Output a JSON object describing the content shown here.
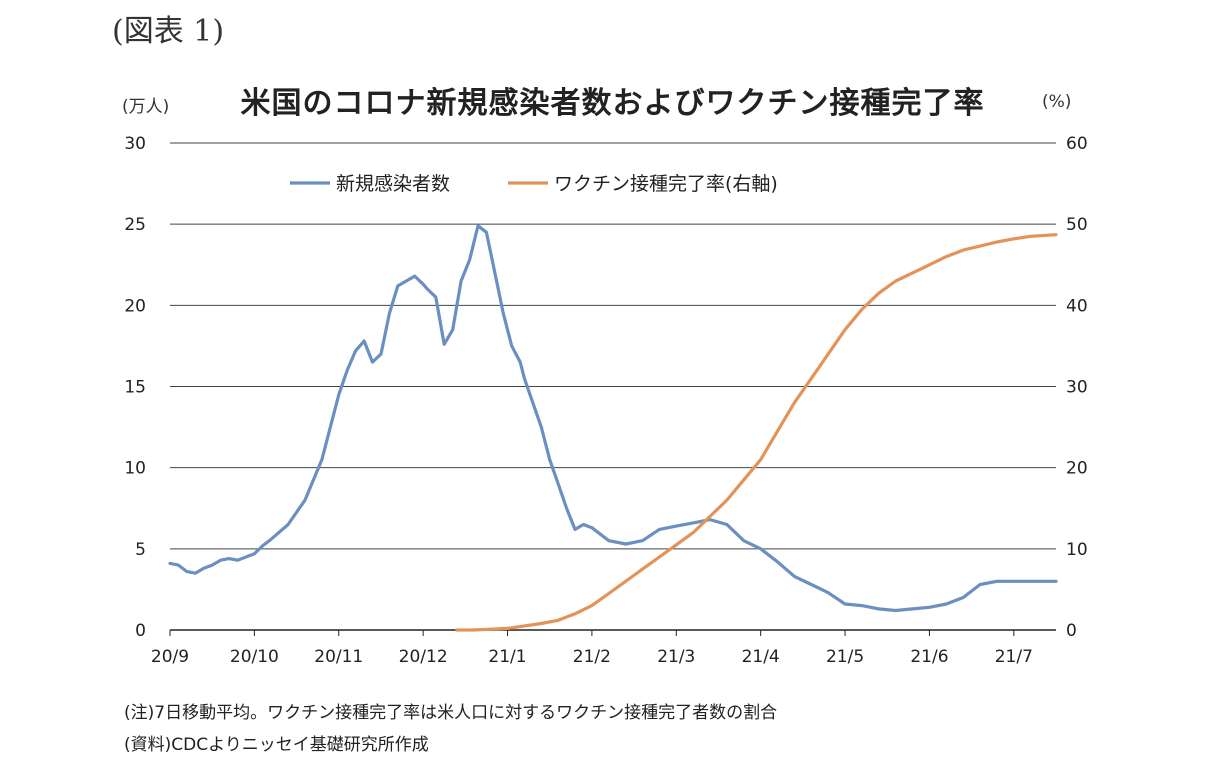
{
  "figure_label": "(図表 1)",
  "notes": [
    "(注)7日移動平均。ワクチン接種完了率は米人口に対するワクチン接種完了者数の割合",
    "(資料)CDCよりニッセイ基礎研究所作成"
  ],
  "colors": {
    "cases": "#6a8fc0",
    "vaccine": "#e39358",
    "grid": "#444444"
  },
  "chart_data": {
    "type": "line",
    "title": "米国のコロナ新規感染者数およびワクチン接種完了率",
    "y_left_unit": "(万人)",
    "y_right_unit": "(%)",
    "y_left_range": [
      0,
      30
    ],
    "y_right_range": [
      0,
      60
    ],
    "y_left_ticks": [
      "0",
      "5",
      "10",
      "15",
      "20",
      "25",
      "30"
    ],
    "y_right_ticks": [
      "0",
      "10",
      "20",
      "30",
      "40",
      "50",
      "60"
    ],
    "x_range": [
      0,
      10.5
    ],
    "x_ticks": [
      "20/9",
      "20/10",
      "20/11",
      "20/12",
      "21/1",
      "21/2",
      "21/3",
      "21/4",
      "21/5",
      "21/6",
      "21/7"
    ],
    "grid": true,
    "legend_position": "top",
    "series": [
      {
        "name": "新規感染者数",
        "axis": "left",
        "x": [
          0,
          0.1,
          0.2,
          0.3,
          0.4,
          0.5,
          0.6,
          0.7,
          0.8,
          0.9,
          1.0,
          1.1,
          1.2,
          1.4,
          1.6,
          1.8,
          2.0,
          2.1,
          2.2,
          2.3,
          2.4,
          2.5,
          2.6,
          2.7,
          2.8,
          2.9,
          3.0,
          3.05,
          3.15,
          3.25,
          3.35,
          3.45,
          3.55,
          3.65,
          3.75,
          3.85,
          3.95,
          4.05,
          4.15,
          4.2,
          4.3,
          4.4,
          4.5,
          4.6,
          4.7,
          4.8,
          4.9,
          5.0,
          5.2,
          5.4,
          5.6,
          5.8,
          6.0,
          6.2,
          6.4,
          6.6,
          6.8,
          7.0,
          7.2,
          7.4,
          7.6,
          7.8,
          8.0,
          8.2,
          8.4,
          8.6,
          8.8,
          9.0,
          9.2,
          9.4,
          9.6,
          9.8,
          10.0,
          10.2,
          10.4,
          10.5
        ],
        "values": [
          4.1,
          4.0,
          3.6,
          3.5,
          3.8,
          4.0,
          4.3,
          4.4,
          4.3,
          4.5,
          4.7,
          5.2,
          5.6,
          6.5,
          8.0,
          10.5,
          14.5,
          16.0,
          17.2,
          17.8,
          16.5,
          17.0,
          19.5,
          21.2,
          21.5,
          21.8,
          21.3,
          21.0,
          20.5,
          17.6,
          18.5,
          21.5,
          22.8,
          24.9,
          24.5,
          22.0,
          19.5,
          17.5,
          16.5,
          15.5,
          14.0,
          12.5,
          10.5,
          9.0,
          7.5,
          6.2,
          6.5,
          6.3,
          5.5,
          5.3,
          5.5,
          6.2,
          6.4,
          6.6,
          6.8,
          6.5,
          5.5,
          5.0,
          4.2,
          3.3,
          2.8,
          2.3,
          1.6,
          1.5,
          1.3,
          1.2,
          1.3,
          1.4,
          1.6,
          2.0,
          2.8,
          3.0,
          3.0,
          3.0,
          3.0,
          3.0
        ]
      },
      {
        "name": "ワクチン接種完了率(右軸)",
        "axis": "right",
        "x": [
          3.4,
          3.6,
          3.8,
          4.0,
          4.2,
          4.4,
          4.6,
          4.8,
          5.0,
          5.2,
          5.4,
          5.6,
          5.8,
          6.0,
          6.2,
          6.4,
          6.6,
          6.8,
          7.0,
          7.2,
          7.4,
          7.6,
          7.8,
          8.0,
          8.2,
          8.4,
          8.6,
          8.8,
          9.0,
          9.2,
          9.4,
          9.6,
          9.8,
          10.0,
          10.2,
          10.5
        ],
        "values": [
          0.0,
          0.0,
          0.1,
          0.2,
          0.5,
          0.8,
          1.2,
          2.0,
          3.0,
          4.5,
          6.0,
          7.5,
          9.0,
          10.5,
          12.0,
          14.0,
          16.0,
          18.5,
          21.0,
          24.5,
          28.0,
          31.0,
          34.0,
          37.0,
          39.5,
          41.5,
          43.0,
          44.0,
          45.0,
          46.0,
          46.8,
          47.3,
          47.8,
          48.2,
          48.5,
          48.7
        ]
      }
    ]
  }
}
